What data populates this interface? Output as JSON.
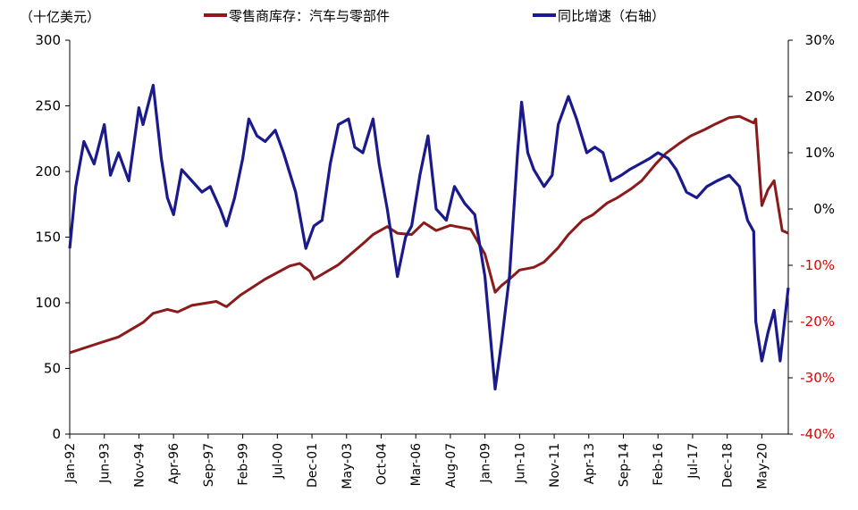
{
  "chart_data": {
    "type": "line",
    "unit_label": "（十亿美元）",
    "legend": [
      "零售商库存：汽车与零部件",
      "同比增速（右轴）"
    ],
    "colors": {
      "inventory": "#8B1A1A",
      "yoy": "#1A1A8C",
      "right_axis_negative": "#E00000"
    },
    "left_axis": {
      "ylim": [
        0,
        300
      ],
      "ticks": [
        "0",
        "50",
        "100",
        "150",
        "200",
        "250",
        "300"
      ]
    },
    "right_axis": {
      "ylim": [
        -40,
        30
      ],
      "ticks": [
        "-40%",
        "-30%",
        "-20%",
        "-10%",
        "0%",
        "10%",
        "20%",
        "30%"
      ],
      "tick_colors": [
        "#E00000",
        "#E00000",
        "#E00000",
        "#E00000",
        "#000000",
        "#000000",
        "#000000",
        "#000000"
      ]
    },
    "x_axis": {
      "start": "1992-01",
      "end": "2021-06",
      "tick_labels": [
        "Jan-92",
        "Jun-93",
        "Nov-94",
        "Apr-96",
        "Sep-97",
        "Feb-99",
        "Jul-00",
        "Dec-01",
        "May-03",
        "Oct-04",
        "Mar-06",
        "Aug-07",
        "Jan-09",
        "Jun-10",
        "Nov-11",
        "Apr-13",
        "Sep-14",
        "Feb-16",
        "Jul-17",
        "Dec-18",
        "May-20"
      ]
    },
    "series": [
      {
        "name": "零售商库存：汽车与零部件",
        "axis": "left",
        "points": [
          [
            "1992-01",
            62
          ],
          [
            "1993-01",
            68
          ],
          [
            "1994-01",
            74
          ],
          [
            "1995-01",
            85
          ],
          [
            "1995-06",
            92
          ],
          [
            "1996-01",
            95
          ],
          [
            "1996-06",
            93
          ],
          [
            "1997-01",
            98
          ],
          [
            "1998-01",
            101
          ],
          [
            "1998-06",
            97
          ],
          [
            "1999-01",
            106
          ],
          [
            "2000-01",
            118
          ],
          [
            "2001-01",
            128
          ],
          [
            "2001-06",
            130
          ],
          [
            "2001-11",
            124
          ],
          [
            "2002-01",
            118
          ],
          [
            "2003-01",
            129
          ],
          [
            "2004-01",
            145
          ],
          [
            "2004-06",
            152
          ],
          [
            "2005-01",
            158
          ],
          [
            "2005-06",
            153
          ],
          [
            "2006-01",
            152
          ],
          [
            "2006-07",
            161
          ],
          [
            "2007-01",
            155
          ],
          [
            "2007-08",
            159
          ],
          [
            "2008-06",
            156
          ],
          [
            "2009-01",
            137
          ],
          [
            "2009-06",
            108
          ],
          [
            "2009-09",
            113
          ],
          [
            "2010-01",
            118
          ],
          [
            "2010-06",
            125
          ],
          [
            "2011-01",
            127
          ],
          [
            "2011-06",
            131
          ],
          [
            "2012-01",
            142
          ],
          [
            "2012-06",
            152
          ],
          [
            "2013-01",
            163
          ],
          [
            "2013-06",
            167
          ],
          [
            "2014-01",
            176
          ],
          [
            "2014-06",
            180
          ],
          [
            "2015-01",
            187
          ],
          [
            "2015-06",
            193
          ],
          [
            "2016-01",
            206
          ],
          [
            "2016-06",
            214
          ],
          [
            "2017-01",
            222
          ],
          [
            "2017-06",
            227
          ],
          [
            "2018-01",
            232
          ],
          [
            "2018-06",
            236
          ],
          [
            "2019-01",
            241
          ],
          [
            "2019-06",
            242
          ],
          [
            "2020-01",
            237
          ],
          [
            "2020-02",
            240
          ],
          [
            "2020-05",
            174
          ],
          [
            "2020-08",
            186
          ],
          [
            "2020-11",
            193
          ],
          [
            "2021-03",
            155
          ],
          [
            "2021-06",
            153
          ]
        ]
      },
      {
        "name": "同比增速（右轴）",
        "axis": "right",
        "points": [
          [
            "1992-01",
            -7
          ],
          [
            "1992-04",
            4
          ],
          [
            "1992-08",
            12
          ],
          [
            "1993-01",
            8
          ],
          [
            "1993-06",
            15
          ],
          [
            "1993-09",
            6
          ],
          [
            "1994-01",
            10
          ],
          [
            "1994-06",
            5
          ],
          [
            "1994-11",
            18
          ],
          [
            "1995-01",
            15
          ],
          [
            "1995-06",
            22
          ],
          [
            "1995-10",
            9
          ],
          [
            "1996-01",
            2
          ],
          [
            "1996-04",
            -1
          ],
          [
            "1996-08",
            7
          ],
          [
            "1997-01",
            5
          ],
          [
            "1997-06",
            3
          ],
          [
            "1997-10",
            4
          ],
          [
            "1998-03",
            0
          ],
          [
            "1998-06",
            -3
          ],
          [
            "1998-10",
            2
          ],
          [
            "1999-02",
            9
          ],
          [
            "1999-05",
            16
          ],
          [
            "1999-09",
            13
          ],
          [
            "2000-01",
            12
          ],
          [
            "2000-06",
            14
          ],
          [
            "2000-10",
            10
          ],
          [
            "2001-04",
            3
          ],
          [
            "2001-09",
            -7
          ],
          [
            "2002-01",
            -3
          ],
          [
            "2002-05",
            -2
          ],
          [
            "2002-09",
            8
          ],
          [
            "2003-01",
            15
          ],
          [
            "2003-06",
            16
          ],
          [
            "2003-09",
            11
          ],
          [
            "2004-01",
            10
          ],
          [
            "2004-06",
            16
          ],
          [
            "2004-09",
            8
          ],
          [
            "2005-01",
            0
          ],
          [
            "2005-06",
            -12
          ],
          [
            "2005-10",
            -5
          ],
          [
            "2006-01",
            -3
          ],
          [
            "2006-05",
            6
          ],
          [
            "2006-09",
            13
          ],
          [
            "2007-01",
            0
          ],
          [
            "2007-06",
            -2
          ],
          [
            "2007-10",
            4
          ],
          [
            "2008-03",
            1
          ],
          [
            "2008-08",
            -1
          ],
          [
            "2009-01",
            -12
          ],
          [
            "2009-06",
            -32
          ],
          [
            "2009-09",
            -24
          ],
          [
            "2010-01",
            -12
          ],
          [
            "2010-05",
            10
          ],
          [
            "2010-07",
            19
          ],
          [
            "2010-10",
            10
          ],
          [
            "2011-01",
            7
          ],
          [
            "2011-06",
            4
          ],
          [
            "2011-10",
            6
          ],
          [
            "2012-01",
            15
          ],
          [
            "2012-06",
            20
          ],
          [
            "2012-10",
            16
          ],
          [
            "2013-03",
            10
          ],
          [
            "2013-07",
            11
          ],
          [
            "2013-11",
            10
          ],
          [
            "2014-03",
            5
          ],
          [
            "2014-08",
            6
          ],
          [
            "2014-12",
            7
          ],
          [
            "2015-05",
            8
          ],
          [
            "2015-10",
            9
          ],
          [
            "2016-02",
            10
          ],
          [
            "2016-07",
            9
          ],
          [
            "2016-11",
            7
          ],
          [
            "2017-04",
            3
          ],
          [
            "2017-09",
            2
          ],
          [
            "2018-02",
            4
          ],
          [
            "2018-07",
            5
          ],
          [
            "2019-01",
            6
          ],
          [
            "2019-06",
            4
          ],
          [
            "2019-10",
            -2
          ],
          [
            "2020-01",
            -4
          ],
          [
            "2020-02",
            -20
          ],
          [
            "2020-05",
            -27
          ],
          [
            "2020-08",
            -22
          ],
          [
            "2020-11",
            -18
          ],
          [
            "2021-02",
            -27
          ],
          [
            "2021-06",
            -14
          ]
        ]
      }
    ]
  }
}
